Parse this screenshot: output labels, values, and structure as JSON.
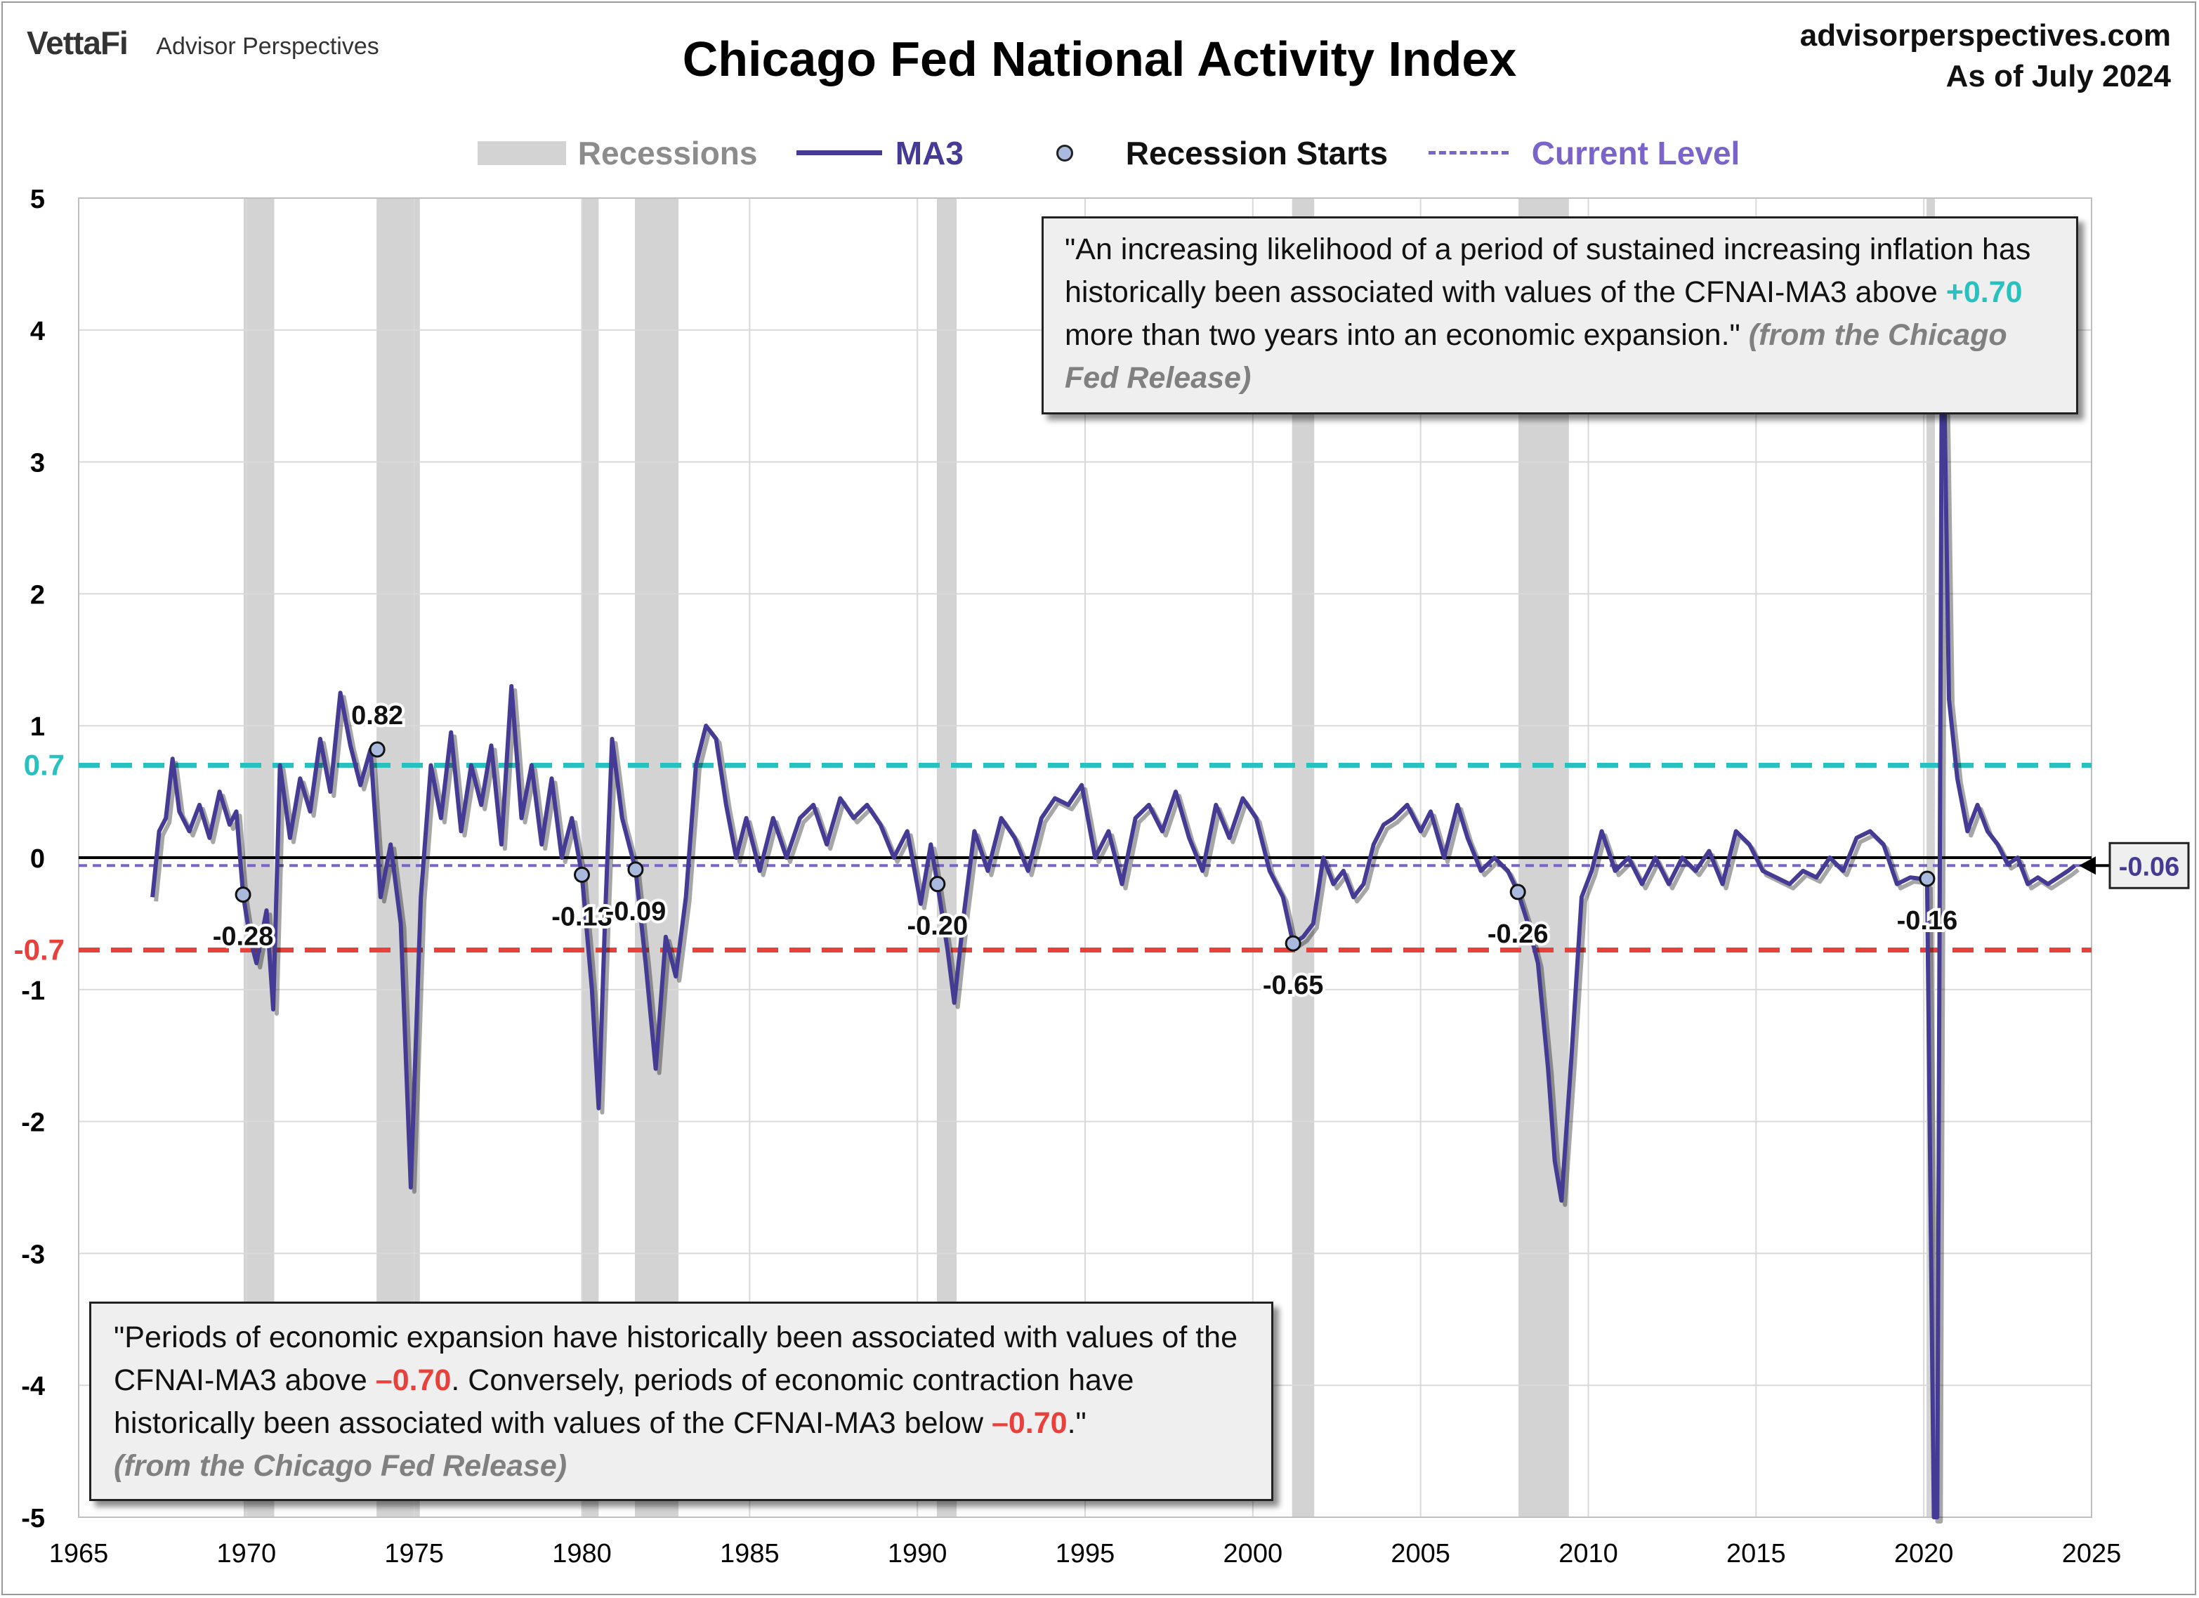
{
  "header": {
    "brand_logo": "VettaFi",
    "brand_name": "Advisor Perspectives",
    "site": "advisorperspectives.com",
    "as_of": "As of July 2024"
  },
  "colors": {
    "ma3": "#453a94",
    "recession": "#d3d3d3",
    "upper_threshold": "#29c0c0",
    "lower_threshold": "#e8403a",
    "current_level": "#7a63c9",
    "recession_marker": "#aab9de"
  },
  "legend": {
    "recessions": "Recessions",
    "ma3": "MA3",
    "recession_starts": "Recession Starts",
    "current_level": "Current Level"
  },
  "quotes": {
    "top": {
      "part1": "\"An increasing likelihood of a period of sustained increasing inflation has historically been associated with values of the CFNAI-MA3 above ",
      "highlight": "+0.70",
      "part2": " more than two years into an economic expansion.\" ",
      "source": "(from the Chicago Fed Release)"
    },
    "bottom": {
      "part1": "\"Periods of economic expansion have historically been associated with values of the CFNAI-MA3 above ",
      "highlight1": "–0.70",
      "part2": ". Conversely, periods of economic contraction have historically been associated with values of the CFNAI-MA3 below ",
      "highlight2": "–0.70",
      "part3": ".\"",
      "source": "(from the Chicago Fed Release)"
    }
  },
  "chart_data": {
    "type": "line",
    "title": "Chicago Fed National Activity Index",
    "xlim": [
      1965,
      2025
    ],
    "ylim": [
      -5,
      5
    ],
    "x_ticks": [
      "1965",
      "1970",
      "1975",
      "1980",
      "1985",
      "1990",
      "1995",
      "2000",
      "2005",
      "2010",
      "2015",
      "2020",
      "2025"
    ],
    "y_ticks": [
      "-5",
      "-4",
      "-3",
      "-2",
      "-1",
      "0",
      "1",
      "2",
      "3",
      "4",
      "5"
    ],
    "grid": true,
    "legend_position": "top",
    "thresholds": [
      {
        "value": 0.7,
        "label": "0.7"
      },
      {
        "value": -0.7,
        "label": "-0.7"
      }
    ],
    "current_level": {
      "value": -0.06,
      "label": "-0.06"
    },
    "recessions": [
      [
        1969.92,
        1970.83
      ],
      [
        1973.88,
        1975.17
      ],
      [
        1980.0,
        1980.5
      ],
      [
        1981.58,
        1982.88
      ],
      [
        1990.58,
        1991.17
      ],
      [
        2001.17,
        2001.83
      ],
      [
        2007.92,
        2009.42
      ],
      [
        2020.08,
        2020.33
      ]
    ],
    "recession_starts": [
      {
        "x": 1969.9,
        "y": -0.28,
        "label": "-0.28"
      },
      {
        "x": 1973.9,
        "y": 0.82,
        "label": "0.82"
      },
      {
        "x": 1980.0,
        "y": -0.13,
        "label": "-0.13"
      },
      {
        "x": 1981.6,
        "y": -0.09,
        "label": "-0.09"
      },
      {
        "x": 1990.6,
        "y": -0.2,
        "label": "-0.20"
      },
      {
        "x": 2001.2,
        "y": -0.65,
        "label": "-0.65"
      },
      {
        "x": 2007.9,
        "y": -0.26,
        "label": "-0.26"
      },
      {
        "x": 2020.1,
        "y": -0.16,
        "label": "-0.16"
      }
    ],
    "series": [
      {
        "name": "MA3",
        "points": [
          [
            1967.2,
            -0.3
          ],
          [
            1967.4,
            0.2
          ],
          [
            1967.6,
            0.3
          ],
          [
            1967.8,
            0.75
          ],
          [
            1968.0,
            0.35
          ],
          [
            1968.3,
            0.2
          ],
          [
            1968.6,
            0.4
          ],
          [
            1968.9,
            0.15
          ],
          [
            1969.2,
            0.5
          ],
          [
            1969.5,
            0.25
          ],
          [
            1969.7,
            0.35
          ],
          [
            1969.9,
            -0.28
          ],
          [
            1970.1,
            -0.6
          ],
          [
            1970.3,
            -0.8
          ],
          [
            1970.6,
            -0.4
          ],
          [
            1970.8,
            -1.15
          ],
          [
            1971.0,
            0.7
          ],
          [
            1971.3,
            0.15
          ],
          [
            1971.6,
            0.6
          ],
          [
            1971.9,
            0.35
          ],
          [
            1972.2,
            0.9
          ],
          [
            1972.5,
            0.5
          ],
          [
            1972.8,
            1.25
          ],
          [
            1973.1,
            0.85
          ],
          [
            1973.4,
            0.55
          ],
          [
            1973.7,
            0.82
          ],
          [
            1974.0,
            -0.3
          ],
          [
            1974.3,
            0.1
          ],
          [
            1974.6,
            -0.5
          ],
          [
            1974.9,
            -2.5
          ],
          [
            1975.2,
            -0.3
          ],
          [
            1975.5,
            0.7
          ],
          [
            1975.8,
            0.3
          ],
          [
            1976.1,
            0.95
          ],
          [
            1976.4,
            0.2
          ],
          [
            1976.7,
            0.7
          ],
          [
            1977.0,
            0.4
          ],
          [
            1977.3,
            0.85
          ],
          [
            1977.6,
            0.1
          ],
          [
            1977.9,
            1.3
          ],
          [
            1978.2,
            0.3
          ],
          [
            1978.5,
            0.7
          ],
          [
            1978.8,
            0.1
          ],
          [
            1979.1,
            0.6
          ],
          [
            1979.4,
            0.0
          ],
          [
            1979.7,
            0.3
          ],
          [
            1980.0,
            -0.13
          ],
          [
            1980.3,
            -1.0
          ],
          [
            1980.5,
            -1.9
          ],
          [
            1980.7,
            -0.4
          ],
          [
            1980.9,
            0.9
          ],
          [
            1981.2,
            0.3
          ],
          [
            1981.6,
            -0.09
          ],
          [
            1981.9,
            -0.8
          ],
          [
            1982.2,
            -1.6
          ],
          [
            1982.5,
            -0.6
          ],
          [
            1982.8,
            -0.9
          ],
          [
            1983.1,
            -0.3
          ],
          [
            1983.4,
            0.7
          ],
          [
            1983.7,
            1.0
          ],
          [
            1984.0,
            0.9
          ],
          [
            1984.3,
            0.4
          ],
          [
            1984.6,
            0.0
          ],
          [
            1984.9,
            0.3
          ],
          [
            1985.3,
            -0.1
          ],
          [
            1985.7,
            0.3
          ],
          [
            1986.1,
            0.0
          ],
          [
            1986.5,
            0.3
          ],
          [
            1986.9,
            0.4
          ],
          [
            1987.3,
            0.1
          ],
          [
            1987.7,
            0.45
          ],
          [
            1988.1,
            0.3
          ],
          [
            1988.5,
            0.4
          ],
          [
            1988.9,
            0.25
          ],
          [
            1989.3,
            0.0
          ],
          [
            1989.7,
            0.2
          ],
          [
            1990.1,
            -0.35
          ],
          [
            1990.4,
            0.1
          ],
          [
            1990.6,
            -0.2
          ],
          [
            1990.9,
            -0.7
          ],
          [
            1991.1,
            -1.1
          ],
          [
            1991.4,
            -0.4
          ],
          [
            1991.7,
            0.2
          ],
          [
            1992.1,
            -0.1
          ],
          [
            1992.5,
            0.3
          ],
          [
            1992.9,
            0.15
          ],
          [
            1993.3,
            -0.1
          ],
          [
            1993.7,
            0.3
          ],
          [
            1994.1,
            0.45
          ],
          [
            1994.5,
            0.4
          ],
          [
            1994.9,
            0.55
          ],
          [
            1995.3,
            0.0
          ],
          [
            1995.7,
            0.2
          ],
          [
            1996.1,
            -0.2
          ],
          [
            1996.5,
            0.3
          ],
          [
            1996.9,
            0.4
          ],
          [
            1997.3,
            0.2
          ],
          [
            1997.7,
            0.5
          ],
          [
            1998.1,
            0.15
          ],
          [
            1998.5,
            -0.1
          ],
          [
            1998.9,
            0.4
          ],
          [
            1999.3,
            0.15
          ],
          [
            1999.7,
            0.45
          ],
          [
            2000.1,
            0.3
          ],
          [
            2000.5,
            -0.1
          ],
          [
            2000.9,
            -0.3
          ],
          [
            2001.2,
            -0.65
          ],
          [
            2001.5,
            -0.6
          ],
          [
            2001.8,
            -0.5
          ],
          [
            2002.1,
            0.0
          ],
          [
            2002.4,
            -0.2
          ],
          [
            2002.7,
            -0.1
          ],
          [
            2003.0,
            -0.3
          ],
          [
            2003.3,
            -0.2
          ],
          [
            2003.6,
            0.1
          ],
          [
            2003.9,
            0.25
          ],
          [
            2004.2,
            0.3
          ],
          [
            2004.6,
            0.4
          ],
          [
            2005.0,
            0.2
          ],
          [
            2005.3,
            0.35
          ],
          [
            2005.7,
            0.0
          ],
          [
            2006.1,
            0.4
          ],
          [
            2006.4,
            0.15
          ],
          [
            2006.8,
            -0.1
          ],
          [
            2007.2,
            0.0
          ],
          [
            2007.6,
            -0.1
          ],
          [
            2007.9,
            -0.26
          ],
          [
            2008.2,
            -0.5
          ],
          [
            2008.5,
            -0.8
          ],
          [
            2008.8,
            -1.6
          ],
          [
            2009.0,
            -2.3
          ],
          [
            2009.2,
            -2.6
          ],
          [
            2009.5,
            -1.5
          ],
          [
            2009.8,
            -0.3
          ],
          [
            2010.1,
            -0.1
          ],
          [
            2010.4,
            0.2
          ],
          [
            2010.8,
            -0.1
          ],
          [
            2011.2,
            0.0
          ],
          [
            2011.6,
            -0.2
          ],
          [
            2012.0,
            0.0
          ],
          [
            2012.4,
            -0.2
          ],
          [
            2012.8,
            0.0
          ],
          [
            2013.2,
            -0.1
          ],
          [
            2013.6,
            0.05
          ],
          [
            2014.0,
            -0.2
          ],
          [
            2014.4,
            0.2
          ],
          [
            2014.8,
            0.1
          ],
          [
            2015.2,
            -0.1
          ],
          [
            2015.6,
            -0.15
          ],
          [
            2016.0,
            -0.2
          ],
          [
            2016.4,
            -0.1
          ],
          [
            2016.8,
            -0.15
          ],
          [
            2017.2,
            0.0
          ],
          [
            2017.6,
            -0.1
          ],
          [
            2018.0,
            0.15
          ],
          [
            2018.4,
            0.2
          ],
          [
            2018.8,
            0.1
          ],
          [
            2019.2,
            -0.2
          ],
          [
            2019.6,
            -0.15
          ],
          [
            2019.9,
            -0.16
          ],
          [
            2020.1,
            -0.2
          ],
          [
            2020.3,
            -5.0
          ],
          [
            2020.4,
            -5.0
          ],
          [
            2020.55,
            4.6
          ],
          [
            2020.75,
            1.2
          ],
          [
            2021.0,
            0.6
          ],
          [
            2021.3,
            0.2
          ],
          [
            2021.6,
            0.4
          ],
          [
            2021.9,
            0.2
          ],
          [
            2022.2,
            0.1
          ],
          [
            2022.5,
            -0.05
          ],
          [
            2022.8,
            0.0
          ],
          [
            2023.1,
            -0.2
          ],
          [
            2023.4,
            -0.15
          ],
          [
            2023.7,
            -0.2
          ],
          [
            2024.0,
            -0.15
          ],
          [
            2024.3,
            -0.1
          ],
          [
            2024.5,
            -0.06
          ]
        ]
      }
    ]
  }
}
